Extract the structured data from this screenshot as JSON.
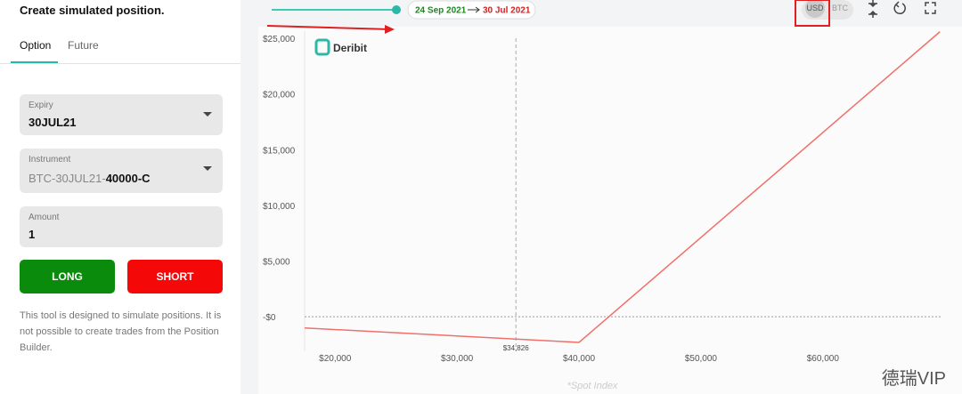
{
  "panel": {
    "title": "Create simulated position.",
    "tabs": [
      "Option",
      "Future"
    ],
    "fields": [
      {
        "label": "Expiry",
        "value": "30JUL21"
      },
      {
        "label": "Instrument",
        "prefix": "BTC-30JUL21-",
        "value": "40000-C"
      },
      {
        "label": "Amount",
        "value": "1"
      }
    ],
    "buttons": [
      "LONG",
      "SHORT"
    ],
    "note": "This tool is designed to simulate positions. It is not possible to create trades from the Position Builder."
  },
  "toolbar": {
    "date_from": "24 Sep 2021",
    "date_to": "30 Jul 2021",
    "currencies": [
      "USD",
      "BTC"
    ]
  },
  "chart_data": {
    "type": "line",
    "logo": "Deribit",
    "x_label": "*Spot Index",
    "watermark": "德瑞VIP",
    "x": [
      17500,
      40000,
      69600
    ],
    "series": [
      {
        "color": "#f0706a",
        "values": [
          -1000,
          -2300,
          25600
        ]
      }
    ],
    "xlim": [
      17500,
      69800
    ],
    "ylim": [
      -3100,
      25650
    ],
    "xticks": [
      {
        "value": 20000,
        "label": "$20,000"
      },
      {
        "value": 30000,
        "label": "$30,000"
      },
      {
        "value": 40000,
        "label": "$40,000"
      },
      {
        "value": 50000,
        "label": "$50,000"
      },
      {
        "value": 60000,
        "label": "$60,000"
      }
    ],
    "yticks": [
      {
        "value": 0,
        "label": "-$0"
      },
      {
        "value": 5000,
        "label": "$5,000"
      },
      {
        "value": 10000,
        "label": "$10,000"
      },
      {
        "value": 15000,
        "label": "$15,000"
      },
      {
        "value": 20000,
        "label": "$20,000"
      },
      {
        "value": 25000,
        "label": "$25,000"
      }
    ],
    "spot": {
      "value": 34826,
      "label": "$34,826"
    }
  }
}
